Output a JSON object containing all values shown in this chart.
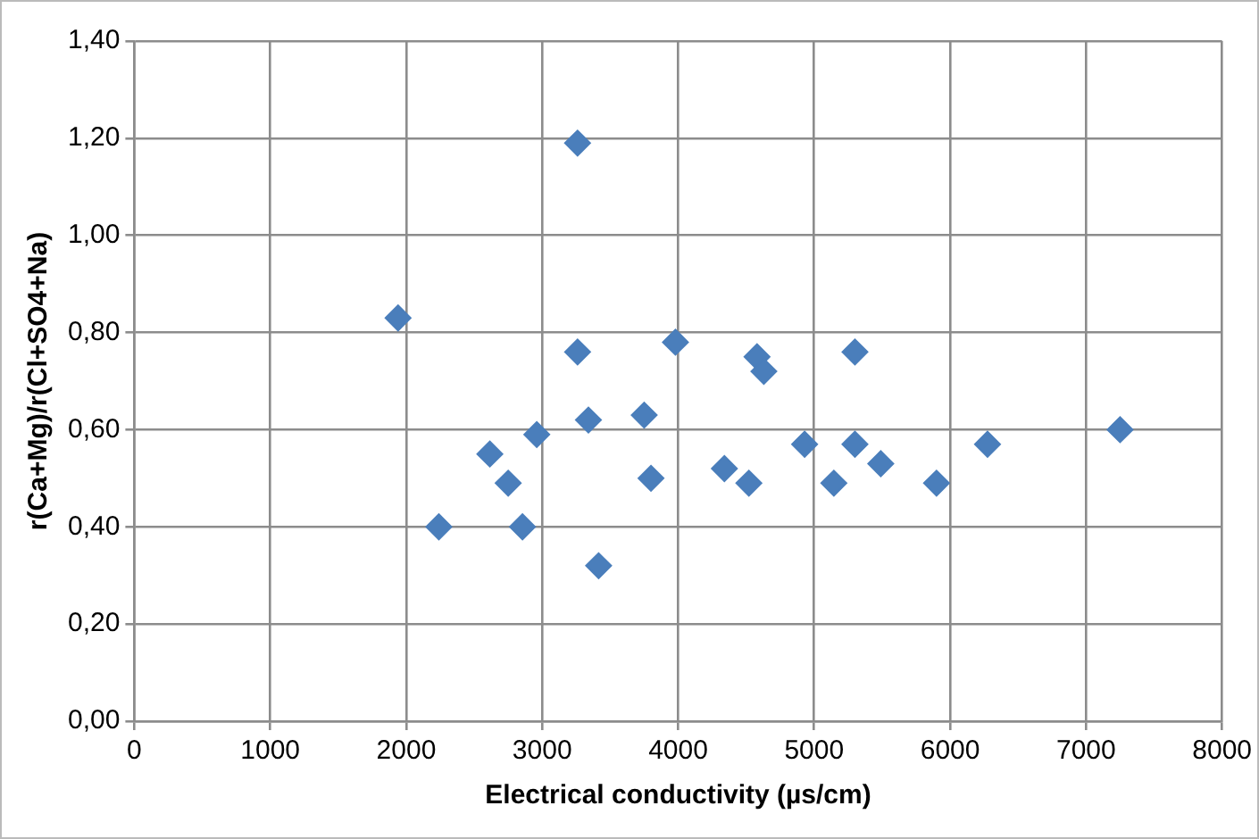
{
  "chart_data": {
    "type": "scatter",
    "xlabel": "Electrical conductivity (µs/cm)",
    "ylabel": "r(Ca+Mg)/r(Cl+SO4+Na)",
    "x": [
      1940,
      3260,
      3260,
      2240,
      2615,
      2750,
      2855,
      2960,
      3340,
      3415,
      3750,
      3800,
      3980,
      4580,
      4630,
      5300,
      4930,
      4340,
      4520,
      5145,
      5300,
      5490,
      5900,
      6275,
      7250
    ],
    "values": [
      0.83,
      1.19,
      0.76,
      0.4,
      0.55,
      0.49,
      0.4,
      0.59,
      0.62,
      0.32,
      0.63,
      0.5,
      0.78,
      0.75,
      0.72,
      0.76,
      0.57,
      0.52,
      0.49,
      0.49,
      0.57,
      0.53,
      0.49,
      0.57,
      0.6
    ],
    "color": "#4a7ebb",
    "marker": "diamond",
    "grid": true,
    "legend": false,
    "xlim": [
      0,
      8000
    ],
    "xticks": [
      0,
      1000,
      2000,
      3000,
      4000,
      5000,
      6000,
      7000,
      8000
    ],
    "ylim": [
      0,
      1.4
    ],
    "yticks": [
      {
        "value": 0,
        "label": "0,00"
      },
      {
        "value": 0.2,
        "label": "0,20"
      },
      {
        "value": 0.4,
        "label": "0,40"
      },
      {
        "value": 0.6,
        "label": "0,60"
      },
      {
        "value": 0.8,
        "label": "0,80"
      },
      {
        "value": 1.0,
        "label": "1,00"
      },
      {
        "value": 1.2,
        "label": "1,20"
      },
      {
        "value": 1.4,
        "label": "1,40"
      }
    ]
  }
}
